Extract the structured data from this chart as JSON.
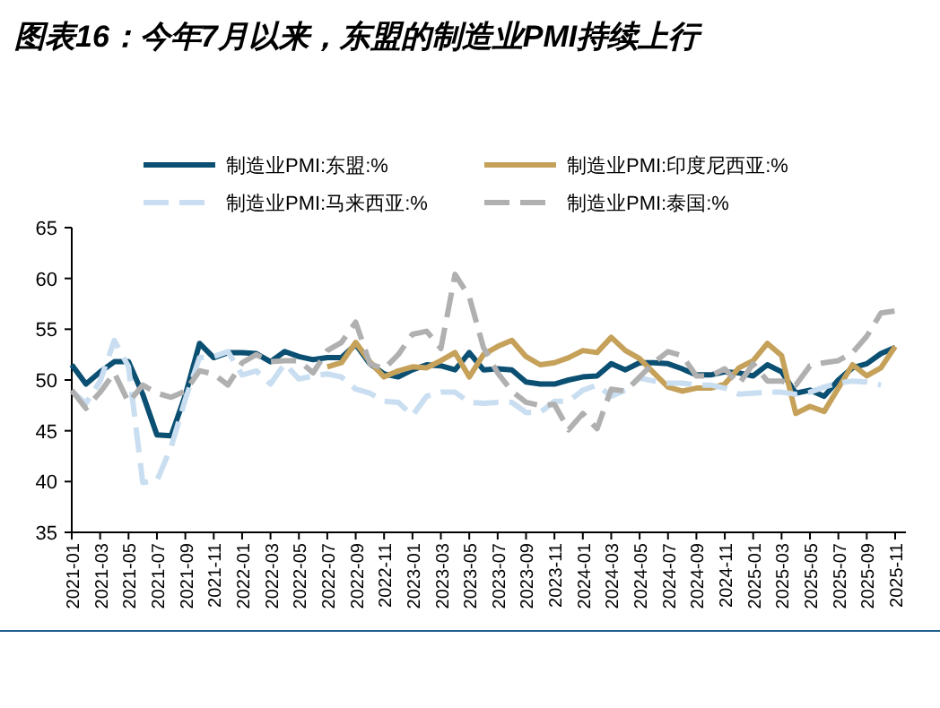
{
  "chart_data": {
    "type": "line",
    "title": "图表16：今年7月以来，东盟的制造业PMI持续上行",
    "categories": [
      "2021-01",
      null,
      "2021-03",
      null,
      "2021-05",
      null,
      "2021-07",
      null,
      "2021-09",
      null,
      "2021-11",
      null,
      "2022-01",
      null,
      "2022-03",
      null,
      "2022-05",
      null,
      "2022-07",
      null,
      "2022-09",
      null,
      "2022-11",
      null,
      "2023-01",
      null,
      "2023-03",
      null,
      "2023-05",
      null,
      "2023-07",
      null,
      "2023-09",
      null,
      "2023-11",
      null,
      "2024-01",
      null,
      "2024-03",
      null,
      "2024-05",
      null,
      "2024-07",
      null,
      "2024-09",
      null,
      "2024-11",
      null,
      "2025-01",
      null,
      "2025-03",
      null,
      "2025-05",
      null,
      "2025-07",
      null,
      "2025-09",
      null,
      "2025-11"
    ],
    "ylim": [
      35,
      65
    ],
    "yticks": [
      35,
      40,
      45,
      50,
      55,
      60,
      65
    ],
    "legend": "top",
    "grid": false,
    "marker": "none",
    "series": [
      {
        "name": "制造业PMI:东盟:%",
        "color": "#0b4f72",
        "line_style": "solid",
        "values": [
          51.5,
          49.6,
          50.8,
          51.8,
          51.8,
          48.6,
          44.6,
          44.5,
          48.5,
          53.6,
          52.2,
          52.7,
          52.7,
          52.6,
          51.8,
          52.8,
          52.3,
          52.0,
          52.2,
          52.2,
          53.5,
          51.6,
          50.6,
          50.3,
          51.0,
          51.5,
          51.4,
          51.0,
          52.7,
          51.0,
          51.1,
          51.0,
          49.8,
          49.6,
          49.6,
          50.0,
          50.3,
          50.4,
          51.6,
          51.0,
          51.7,
          51.7,
          51.6,
          51.1,
          50.5,
          50.5,
          50.8,
          50.7,
          50.4,
          51.5,
          50.8,
          48.7,
          49.0,
          48.4,
          50.0,
          51.2,
          51.6,
          52.6,
          53.2
        ]
      },
      {
        "name": "制造业PMI:印度尼西亚:%",
        "color": "#c5a15a",
        "line_style": "solid",
        "values": [
          null,
          null,
          null,
          null,
          null,
          null,
          null,
          null,
          null,
          null,
          null,
          null,
          null,
          null,
          null,
          null,
          null,
          null,
          51.3,
          51.7,
          53.7,
          51.8,
          50.3,
          50.9,
          51.3,
          51.2,
          51.9,
          52.7,
          50.3,
          52.5,
          53.3,
          53.9,
          52.3,
          51.5,
          51.7,
          52.2,
          52.9,
          52.7,
          54.2,
          52.9,
          52.1,
          50.7,
          49.3,
          48.9,
          49.2,
          49.2,
          49.6,
          51.2,
          51.9,
          53.6,
          52.4,
          46.7,
          47.4,
          46.9,
          49.2,
          51.5,
          50.4,
          51.2,
          53.3
        ]
      },
      {
        "name": "制造业PMI:马来西亚:%",
        "color": "#c9def0",
        "line_style": "dashed",
        "values": [
          48.9,
          47.7,
          49.9,
          53.9,
          51.3,
          39.9,
          40.1,
          43.4,
          48.1,
          52.2,
          52.3,
          52.8,
          50.5,
          50.9,
          49.6,
          51.6,
          50.1,
          50.4,
          50.6,
          50.3,
          49.1,
          48.7,
          47.9,
          47.8,
          46.5,
          48.4,
          48.8,
          48.8,
          47.8,
          47.7,
          47.8,
          47.8,
          46.8,
          46.8,
          47.9,
          47.9,
          49.0,
          49.5,
          48.4,
          49.0,
          50.2,
          49.9,
          49.7,
          49.7,
          49.5,
          49.5,
          49.2,
          48.6,
          48.7,
          48.8,
          48.8,
          48.6,
          48.8,
          49.3,
          49.7,
          49.9,
          49.8,
          49.5,
          null
        ]
      },
      {
        "name": "制造业PMI:泰国:%",
        "color": "#b0b0b0",
        "line_style": "dashed",
        "values": [
          49.0,
          47.2,
          48.8,
          50.7,
          47.8,
          49.5,
          48.7,
          48.3,
          48.9,
          50.9,
          50.6,
          49.5,
          51.7,
          52.5,
          51.8,
          51.9,
          51.9,
          50.7,
          52.9,
          53.7,
          55.7,
          51.6,
          51.1,
          52.5,
          54.5,
          54.8,
          53.1,
          60.4,
          58.2,
          53.2,
          50.7,
          48.9,
          47.8,
          47.5,
          47.6,
          45.1,
          46.7,
          45.2,
          49.1,
          48.9,
          50.3,
          51.7,
          52.8,
          52.4,
          50.4,
          50.4,
          51.1,
          49.6,
          51.6,
          49.9,
          49.9,
          49.5,
          51.4,
          51.7,
          51.9,
          52.7,
          54.3,
          56.6,
          56.8
        ]
      }
    ]
  }
}
